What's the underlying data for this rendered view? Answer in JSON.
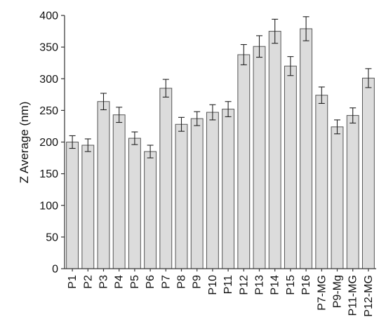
{
  "chart_data": {
    "type": "bar",
    "title": "",
    "xlabel": "",
    "ylabel": "Z Average (nm)",
    "ylim": [
      0,
      400
    ],
    "yticks": [
      0,
      50,
      100,
      150,
      200,
      250,
      300,
      350,
      400
    ],
    "grid": false,
    "categories": [
      "P1",
      "P2",
      "P3",
      "P4",
      "P5",
      "P6",
      "P7",
      "P8",
      "P9",
      "P10",
      "P11",
      "P12",
      "P13",
      "P14",
      "P15",
      "P16",
      "P7-MG",
      "P9-Mg",
      "P11-MG",
      "P12-MG"
    ],
    "values": [
      200,
      195,
      264,
      243,
      206,
      185,
      285,
      228,
      237,
      247,
      252,
      338,
      351,
      375,
      320,
      379,
      274,
      224,
      242,
      301
    ],
    "errors": [
      10,
      10,
      13,
      12,
      10,
      10,
      14,
      11,
      11,
      12,
      12,
      16,
      17,
      19,
      15,
      19,
      13,
      11,
      12,
      15
    ],
    "colors": {
      "bar_fill": "#dcdcdc",
      "bar_stroke": "#555555",
      "axis": "#333333"
    }
  }
}
